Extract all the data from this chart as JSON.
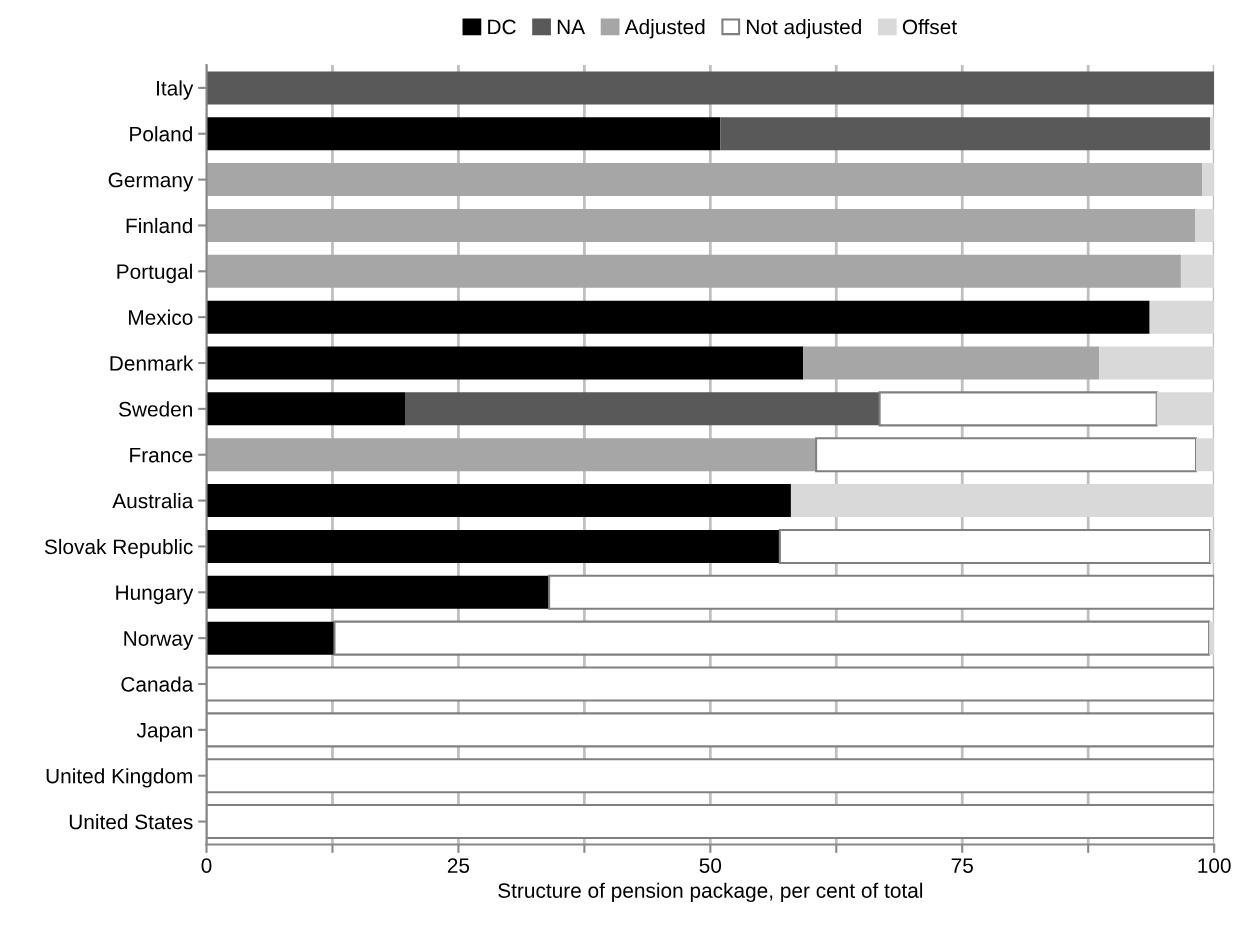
{
  "chart_data": {
    "type": "bar",
    "orientation": "horizontal",
    "stacked": true,
    "xlabel": "Structure of pension package, per cent of total",
    "categories": [
      "Italy",
      "Poland",
      "Germany",
      "Finland",
      "Portugal",
      "Mexico",
      "Denmark",
      "Sweden",
      "France",
      "Australia",
      "Slovak Republic",
      "Hungary",
      "Norway",
      "Canada",
      "Japan",
      "United Kingdom",
      "United States"
    ],
    "series": [
      {
        "name": "DC",
        "color": "#000000",
        "values": [
          0,
          51,
          0,
          0,
          0,
          93.6,
          59.2,
          19.7,
          0,
          58,
          56.9,
          34,
          12.7,
          0,
          0,
          0,
          0
        ]
      },
      {
        "name": "NA",
        "color": "#595959",
        "values": [
          100,
          48.6,
          0,
          0,
          0,
          0,
          0,
          47.1,
          0,
          0,
          0,
          0,
          0,
          0,
          0,
          0,
          0
        ]
      },
      {
        "name": "Adjusted",
        "color": "#a6a6a6",
        "values": [
          0,
          0,
          98.8,
          98.1,
          96.7,
          0,
          29.4,
          0,
          60.5,
          0,
          0,
          0,
          0,
          0,
          0,
          0,
          0
        ]
      },
      {
        "name": "Not adjusted",
        "color": "#ffffff",
        "values": [
          0,
          0,
          0,
          0,
          0,
          0,
          0,
          27.5,
          37.7,
          0,
          42.7,
          66,
          86.8,
          100,
          100,
          100,
          100
        ]
      },
      {
        "name": "Offset",
        "color": "#d9d9d9",
        "values": [
          0,
          0.4,
          1.2,
          1.9,
          3.3,
          6.4,
          11.4,
          5.7,
          1.8,
          42,
          0.4,
          0,
          0.5,
          0,
          0,
          0,
          0
        ]
      }
    ],
    "xlim": [
      0,
      100
    ],
    "xticks": [
      0,
      {
        "value": 12.5,
        "label": null
      },
      25,
      {
        "value": 37.5,
        "label": null
      },
      50,
      {
        "value": 62.5,
        "label": null
      },
      75,
      {
        "value": 87.5,
        "label": null
      },
      100
    ],
    "grid": "x",
    "legend": "top"
  }
}
